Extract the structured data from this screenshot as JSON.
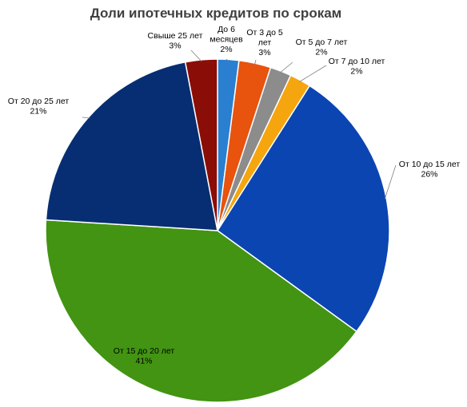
{
  "chart_data": {
    "type": "pie",
    "title": "Доли ипотечных кредитов по срокам",
    "slices": [
      {
        "label": [
          "До 6",
          "месяцев"
        ],
        "value": 2,
        "value_label": "2%",
        "color": "#2a7fd0"
      },
      {
        "label": [
          "От 3 до 5",
          "лет"
        ],
        "value": 3,
        "value_label": "3%",
        "color": "#e8530e"
      },
      {
        "label": [
          "От 5 до 7 лет"
        ],
        "value": 2,
        "value_label": "2%",
        "color": "#8c8c8c"
      },
      {
        "label": [
          "От 7 до 10 лет"
        ],
        "value": 2,
        "value_label": "2%",
        "color": "#f5a50e"
      },
      {
        "label": [
          "От 10 до 15 лет"
        ],
        "value": 26,
        "value_label": "26%",
        "color": "#0b45b1"
      },
      {
        "label": [
          "От 15 до 20 лет"
        ],
        "value": 41,
        "value_label": "41%",
        "color": "#429412"
      },
      {
        "label": [
          "От 20 до 25 лет"
        ],
        "value": 21,
        "value_label": "21%",
        "color": "#072e72"
      },
      {
        "label": [
          "Свыше 25 лет"
        ],
        "value": 3,
        "value_label": "3%",
        "color": "#8b0d07"
      }
    ]
  }
}
